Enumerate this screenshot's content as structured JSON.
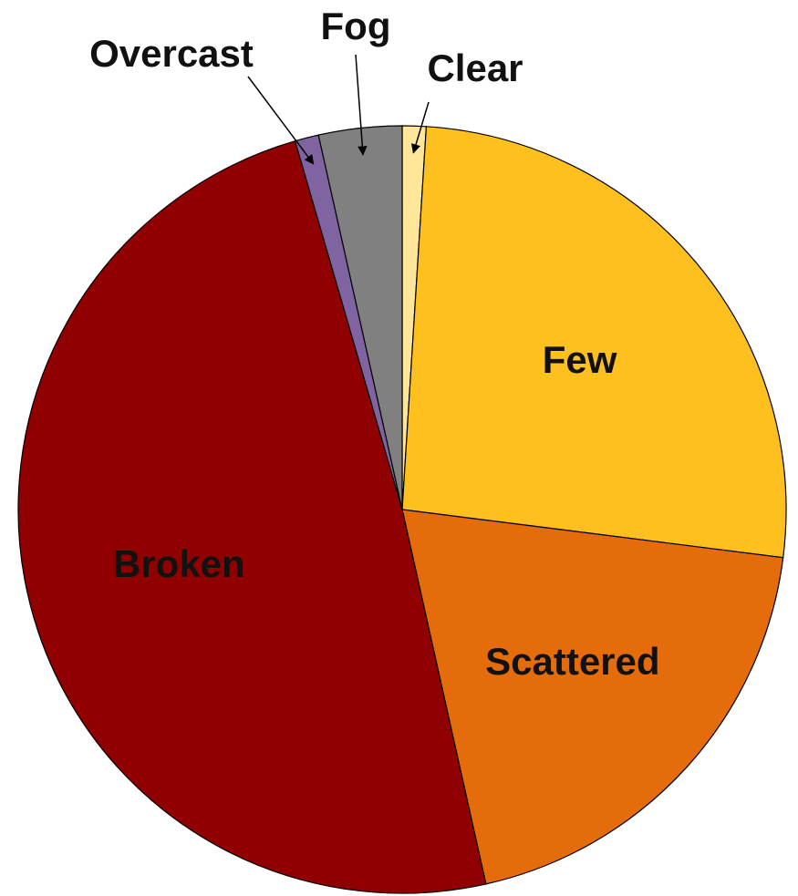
{
  "chart_data": {
    "type": "pie",
    "categories": [
      "Clear",
      "Few",
      "Scattered",
      "Broken",
      "Overcast",
      "Fog"
    ],
    "values": [
      1,
      26,
      19.5,
      49,
      1,
      3.5
    ],
    "colors": [
      "#ffe699",
      "#fdc01f",
      "#e46c0a",
      "#900000",
      "#8064a2",
      "#808080"
    ]
  }
}
